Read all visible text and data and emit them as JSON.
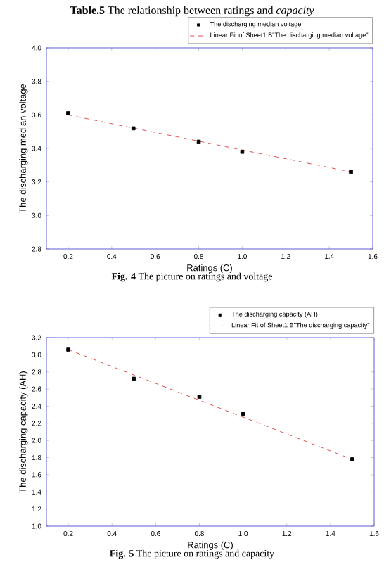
{
  "chart_data": [
    {
      "type": "scatter",
      "title": "**Table.5** The relationship between ratings and *capacity*",
      "xlabel": "Ratings (C)",
      "ylabel": "The discharging median voltage",
      "xlim": [
        0.1,
        1.6
      ],
      "ylim": [
        2.8,
        4.0
      ],
      "xticks": [
        0.2,
        0.4,
        0.6,
        0.8,
        {
          "value": 1.0,
          "label": "1.0"
        },
        1.2,
        1.4,
        1.6
      ],
      "yticks": [
        2.8,
        {
          "value": 3.0,
          "label": "3.0"
        },
        3.2,
        3.4,
        3.6,
        3.8,
        {
          "value": 4.0,
          "label": "4.0"
        }
      ],
      "legend": "top right",
      "series": [
        {
          "name": "The discharging median voltage",
          "marker": "square",
          "color": "#000000",
          "x": [
            0.2,
            0.5,
            0.8,
            1.0,
            1.5
          ],
          "values": [
            3.61,
            3.52,
            3.44,
            3.38,
            3.26
          ]
        },
        {
          "name": "Linear Fit of Sheet1 B\"The discharging median voltage\"",
          "type": "line",
          "line_style": "dashed",
          "color": "#e05050",
          "x": [
            0.2,
            1.5
          ],
          "values": [
            3.6,
            3.26
          ]
        }
      ],
      "annotations": [
        "**Fig. 4** The picture on ratings and voltage"
      ]
    },
    {
      "type": "scatter",
      "xlabel": "Ratings (C)",
      "ylabel": "The discharging capacity (AH)",
      "xlim": [
        0.1,
        1.6
      ],
      "ylim": [
        1.0,
        3.2
      ],
      "xticks": [
        0.2,
        0.4,
        0.6,
        0.8,
        {
          "value": 1.0,
          "label": "1.0"
        },
        1.2,
        1.4,
        1.6
      ],
      "yticks": [
        {
          "value": 1.0,
          "label": "1.0"
        },
        1.2,
        1.4,
        1.6,
        1.8,
        {
          "value": 2.0,
          "label": "2.0"
        },
        2.2,
        2.4,
        2.6,
        2.8,
        {
          "value": 3.0,
          "label": "3.0"
        },
        3.2
      ],
      "legend": "top right",
      "series": [
        {
          "name": "The discharging capacity (AH)",
          "marker": "square",
          "color": "#000000",
          "x": [
            0.2,
            0.5,
            0.8,
            1.0,
            1.5
          ],
          "values": [
            3.06,
            2.72,
            2.51,
            2.31,
            1.78
          ]
        },
        {
          "name": "Linear Fit of Sheet1 B\"The discharging capacity\"",
          "type": "line",
          "line_style": "dashed",
          "color": "#e05050",
          "x": [
            0.2,
            1.5
          ],
          "values": [
            3.06,
            1.78
          ]
        }
      ],
      "annotations": [
        "**Fig. 5** The picture on ratings and capacity"
      ]
    }
  ]
}
